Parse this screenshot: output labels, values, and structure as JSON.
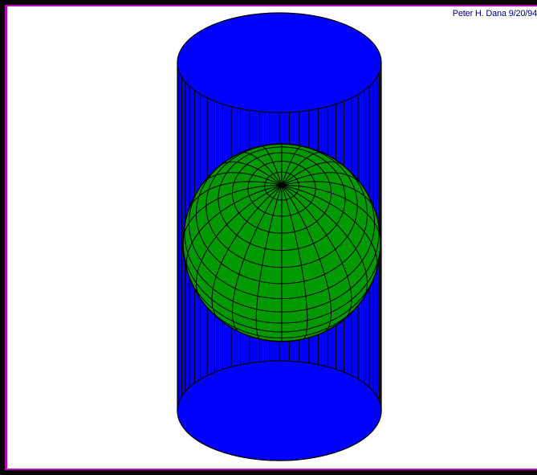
{
  "credit": "Peter H. Dana 9/20/94",
  "colors": {
    "background": "#ffffff",
    "frame": "#000000",
    "border": "#c000c0",
    "cylinder": "#0000ff",
    "globe": "#009900",
    "lines": "#000000",
    "credit_text": "#000080"
  },
  "diagram": {
    "subject": "cylinder tangent to globe",
    "cylinder_line_count": 32,
    "globe_meridian_count": 24,
    "globe_parallel_count": 18
  }
}
